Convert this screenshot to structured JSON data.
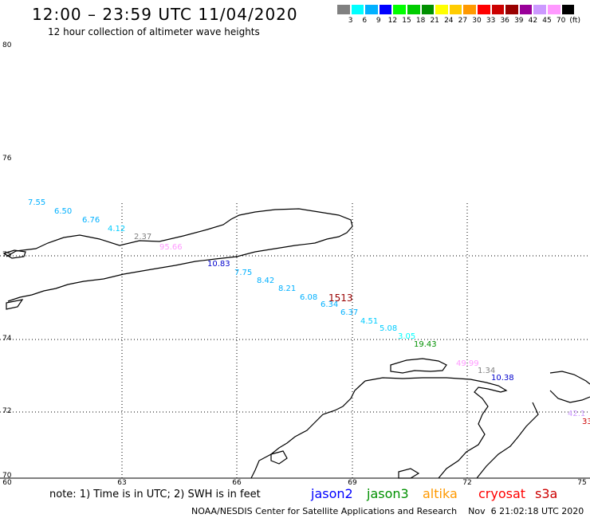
{
  "header": {
    "title": "12:00 – 23:59 UTC 11/04/2020",
    "subtitle": "12 hour collection of altimeter wave heights"
  },
  "colorbar": {
    "colors": [
      "#808080",
      "#00ffff",
      "#00b0ff",
      "#0000ff",
      "#00ff00",
      "#00cc00",
      "#009000",
      "#ffff00",
      "#ffcc00",
      "#ff9900",
      "#ff0000",
      "#cc0000",
      "#990000",
      "#990099",
      "#cc99ff",
      "#ff99ff",
      "#000000"
    ],
    "labels": [
      "3",
      "6",
      "9",
      "12",
      "15",
      "18",
      "21",
      "24",
      "27",
      "30",
      "33",
      "36",
      "39",
      "42",
      "45",
      "70",
      "(ft)"
    ]
  },
  "axes": {
    "y_ticks": [
      "80",
      "76",
      "75",
      "74",
      "72",
      "70"
    ],
    "x_ticks": [
      "60",
      "63",
      "66",
      "69",
      "72",
      "75"
    ]
  },
  "wave_heights": [
    {
      "value": "7.55",
      "color": "#00b0ff"
    },
    {
      "value": "6.50",
      "color": "#00b0ff"
    },
    {
      "value": "6.76",
      "color": "#00b0ff"
    },
    {
      "value": "4.12",
      "color": "#00ccff"
    },
    {
      "value": "2.37",
      "color": "#808080"
    },
    {
      "value": "95.66",
      "color": "#ff99ff"
    },
    {
      "value": "10.83",
      "color": "#0000cc"
    },
    {
      "value": "7.75",
      "color": "#00b0ff"
    },
    {
      "value": "8.42",
      "color": "#00b0ff"
    },
    {
      "value": "8.21",
      "color": "#00b0ff"
    },
    {
      "value": "6.08",
      "color": "#00b0ff"
    },
    {
      "value": "1513",
      "color": "#990000"
    },
    {
      "value": "6.34",
      "color": "#00b0ff"
    },
    {
      "value": "6.37",
      "color": "#00b0ff"
    },
    {
      "value": "4.51",
      "color": "#00ccff"
    },
    {
      "value": "5.08",
      "color": "#00ccff"
    },
    {
      "value": "3.05",
      "color": "#00ffff"
    },
    {
      "value": "19.43",
      "color": "#009000"
    },
    {
      "value": "49.99",
      "color": "#ff99ff"
    },
    {
      "value": "1.34",
      "color": "#808080"
    },
    {
      "value": "10.38",
      "color": "#0000cc"
    },
    {
      "value": "42.1",
      "color": "#cc99ff"
    },
    {
      "value": "33",
      "color": "#cc0000"
    }
  ],
  "footer": {
    "note": "note: 1) Time is in UTC; 2) SWH is in feet",
    "satellites": [
      {
        "name": "jason2",
        "color": "#0000ff"
      },
      {
        "name": "jason3",
        "color": "#009000"
      },
      {
        "name": "altika",
        "color": "#ff9900"
      },
      {
        "name": "cryosat",
        "color": "#ff0000"
      },
      {
        "name": "s3a",
        "color": "#cc0000"
      }
    ],
    "credit": "NOAA/NESDIS Center for Satellite Applications and Research    Nov  6 21:02:18 UTC 2020"
  }
}
